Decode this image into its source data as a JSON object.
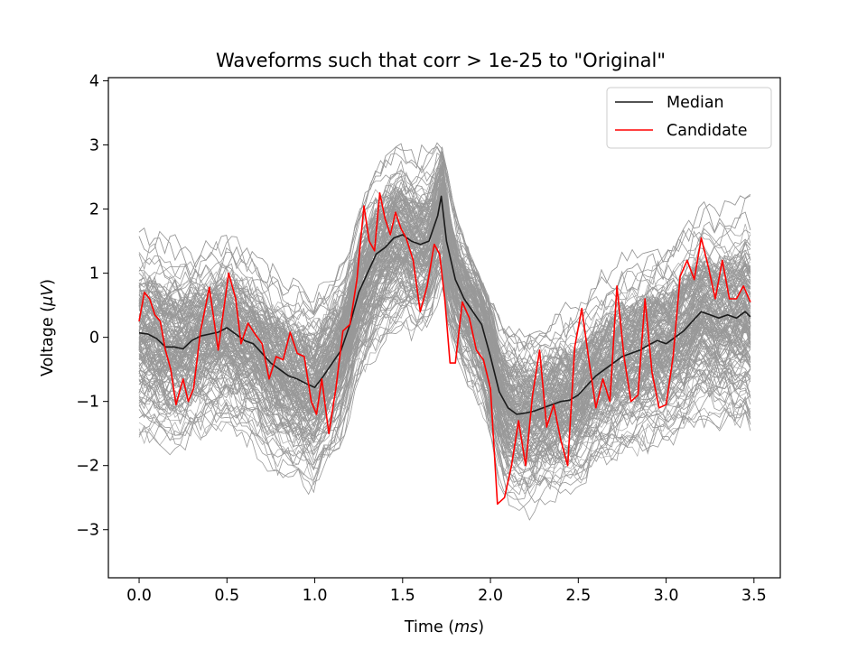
{
  "chart_data": {
    "type": "line",
    "title": "Waveforms such that corr > 1e-25 to \"Original\"",
    "xlabel_prefix": "Time (",
    "xlabel_unit": "ms",
    "xlabel_suffix": ")",
    "ylabel_prefix": "Voltage (",
    "ylabel_unit": "μV",
    "ylabel_suffix": ")",
    "xlim": [
      -0.175,
      3.65
    ],
    "ylim": [
      -3.75,
      4.05
    ],
    "xticks": [
      0.0,
      0.5,
      1.0,
      1.5,
      2.0,
      2.5,
      3.0,
      3.5
    ],
    "xtick_labels": [
      "0.0",
      "0.5",
      "1.0",
      "1.5",
      "2.0",
      "2.5",
      "3.0",
      "3.5"
    ],
    "yticks": [
      -3,
      -2,
      -1,
      0,
      1,
      2,
      3,
      4
    ],
    "ytick_labels": [
      "−3",
      "−2",
      "−1",
      "0",
      "1",
      "2",
      "3",
      "4"
    ],
    "grid": false,
    "legend": {
      "location": "top-right",
      "entries": [
        "Median",
        "Candidate"
      ]
    },
    "colors": {
      "waveforms": "#999999",
      "median": "#1a1a1a",
      "candidate": "#ff0000"
    },
    "waveform_band": {
      "description_count": 300,
      "x": [
        0.0,
        0.1,
        0.2,
        0.3,
        0.4,
        0.5,
        0.6,
        0.7,
        0.8,
        0.9,
        1.0,
        1.1,
        1.2,
        1.3,
        1.4,
        1.5,
        1.6,
        1.7,
        1.75,
        1.8,
        1.9,
        2.0,
        2.1,
        2.2,
        2.3,
        2.4,
        2.5,
        2.6,
        2.7,
        2.8,
        2.9,
        3.0,
        3.1,
        3.2,
        3.3,
        3.4,
        3.48
      ],
      "upper": [
        2.4,
        2.1,
        1.9,
        1.8,
        1.9,
        2.0,
        1.9,
        1.7,
        1.5,
        1.2,
        0.9,
        0.9,
        1.5,
        2.4,
        2.9,
        3.1,
        3.0,
        3.3,
        2.7,
        2.0,
        1.2,
        0.6,
        0.2,
        0.1,
        0.3,
        0.5,
        0.8,
        1.0,
        1.3,
        1.6,
        1.8,
        1.9,
        2.1,
        2.3,
        2.3,
        2.4,
        2.3
      ],
      "lower": [
        -1.6,
        -1.8,
        -1.9,
        -1.8,
        -1.7,
        -1.7,
        -1.8,
        -2.0,
        -2.3,
        -2.6,
        -2.8,
        -2.7,
        -1.8,
        -1.2,
        -0.8,
        -0.6,
        -0.4,
        0.2,
        -0.5,
        -1.0,
        -1.8,
        -2.6,
        -3.2,
        -3.3,
        -3.0,
        -2.8,
        -2.6,
        -2.4,
        -2.3,
        -2.1,
        -2.0,
        -1.9,
        -1.8,
        -1.8,
        -1.9,
        -2.0,
        -2.3
      ]
    },
    "series": [
      {
        "name": "Median",
        "x": [
          0.0,
          0.05,
          0.1,
          0.15,
          0.2,
          0.25,
          0.3,
          0.35,
          0.4,
          0.45,
          0.5,
          0.55,
          0.6,
          0.65,
          0.7,
          0.75,
          0.8,
          0.85,
          0.9,
          0.95,
          1.0,
          1.05,
          1.1,
          1.15,
          1.2,
          1.25,
          1.3,
          1.35,
          1.4,
          1.45,
          1.5,
          1.55,
          1.6,
          1.65,
          1.7,
          1.72,
          1.75,
          1.8,
          1.85,
          1.9,
          1.95,
          2.0,
          2.05,
          2.1,
          2.15,
          2.2,
          2.25,
          2.3,
          2.35,
          2.4,
          2.45,
          2.5,
          2.55,
          2.6,
          2.65,
          2.7,
          2.75,
          2.8,
          2.85,
          2.9,
          2.95,
          3.0,
          3.05,
          3.1,
          3.15,
          3.2,
          3.25,
          3.3,
          3.35,
          3.4,
          3.45,
          3.48
        ],
        "y": [
          0.07,
          0.05,
          -0.02,
          -0.15,
          -0.15,
          -0.18,
          -0.05,
          0.02,
          0.05,
          0.08,
          0.15,
          0.05,
          -0.05,
          -0.1,
          -0.25,
          -0.4,
          -0.5,
          -0.6,
          -0.65,
          -0.72,
          -0.78,
          -0.6,
          -0.4,
          -0.2,
          0.2,
          0.7,
          1.0,
          1.3,
          1.4,
          1.55,
          1.6,
          1.5,
          1.45,
          1.5,
          1.9,
          2.2,
          1.5,
          0.9,
          0.6,
          0.4,
          0.2,
          -0.3,
          -0.85,
          -1.1,
          -1.2,
          -1.18,
          -1.15,
          -1.1,
          -1.05,
          -1.0,
          -0.98,
          -0.9,
          -0.75,
          -0.6,
          -0.5,
          -0.4,
          -0.3,
          -0.25,
          -0.2,
          -0.12,
          -0.05,
          -0.1,
          0.0,
          0.1,
          0.25,
          0.4,
          0.35,
          0.3,
          0.35,
          0.3,
          0.4,
          0.32
        ]
      },
      {
        "name": "Candidate",
        "x": [
          0.0,
          0.03,
          0.06,
          0.09,
          0.12,
          0.15,
          0.18,
          0.21,
          0.25,
          0.28,
          0.31,
          0.35,
          0.4,
          0.45,
          0.48,
          0.51,
          0.55,
          0.58,
          0.62,
          0.66,
          0.7,
          0.74,
          0.78,
          0.82,
          0.86,
          0.9,
          0.94,
          0.98,
          1.01,
          1.04,
          1.08,
          1.12,
          1.16,
          1.2,
          1.24,
          1.28,
          1.31,
          1.34,
          1.37,
          1.4,
          1.43,
          1.46,
          1.49,
          1.52,
          1.56,
          1.6,
          1.64,
          1.68,
          1.71,
          1.74,
          1.77,
          1.8,
          1.84,
          1.88,
          1.92,
          1.96,
          2.0,
          2.04,
          2.08,
          2.12,
          2.16,
          2.2,
          2.24,
          2.28,
          2.32,
          2.36,
          2.4,
          2.44,
          2.48,
          2.52,
          2.56,
          2.6,
          2.64,
          2.68,
          2.72,
          2.76,
          2.8,
          2.84,
          2.88,
          2.92,
          2.96,
          3.0,
          3.04,
          3.08,
          3.12,
          3.16,
          3.2,
          3.24,
          3.28,
          3.32,
          3.36,
          3.4,
          3.44,
          3.48
        ],
        "y": [
          0.25,
          0.7,
          0.6,
          0.35,
          0.25,
          -0.2,
          -0.5,
          -1.05,
          -0.65,
          -1.0,
          -0.8,
          0.1,
          0.78,
          -0.2,
          0.4,
          1.0,
          0.6,
          -0.1,
          0.22,
          0.05,
          -0.1,
          -0.65,
          -0.3,
          -0.35,
          0.08,
          -0.25,
          -0.3,
          -1.0,
          -1.2,
          -0.65,
          -1.5,
          -0.8,
          0.1,
          0.2,
          0.9,
          2.05,
          1.5,
          1.35,
          2.25,
          1.85,
          1.6,
          1.95,
          1.7,
          1.55,
          1.2,
          0.4,
          0.8,
          1.45,
          1.3,
          0.6,
          -0.4,
          -0.4,
          0.55,
          0.3,
          -0.2,
          -0.35,
          -0.8,
          -2.6,
          -2.5,
          -2.0,
          -1.3,
          -2.0,
          -0.9,
          -0.2,
          -1.4,
          -1.05,
          -1.6,
          -2.0,
          -0.15,
          0.45,
          -0.35,
          -1.1,
          -0.65,
          -1.0,
          0.8,
          -0.3,
          -1.0,
          -0.9,
          0.6,
          -0.55,
          -1.1,
          -1.05,
          -0.3,
          0.95,
          1.2,
          0.9,
          1.55,
          1.1,
          0.6,
          1.2,
          0.6,
          0.6,
          0.8,
          0.55
        ]
      }
    ]
  }
}
